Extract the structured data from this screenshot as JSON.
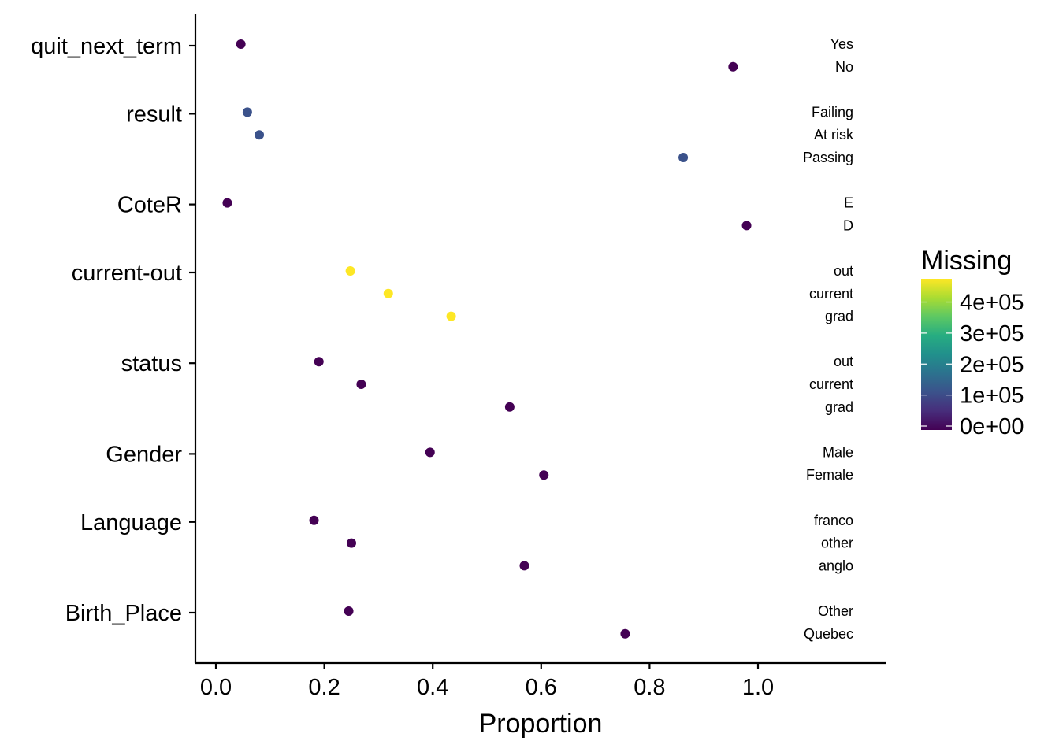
{
  "chart_data": {
    "type": "scatter",
    "xlabel": "Proportion",
    "ylabel": "",
    "xlim": [
      -0.04,
      1.27
    ],
    "x_ticks": [
      "0.0",
      "0.2",
      "0.4",
      "0.6",
      "0.8",
      "1.0"
    ],
    "x_tick_values": [
      0.0,
      0.2,
      0.4,
      0.6,
      0.8,
      1.0
    ],
    "grid": false,
    "legend": {
      "title": "Missing",
      "placement": "right",
      "labels": [
        "4e+05",
        "3e+05",
        "2e+05",
        "1e+05",
        "0e+00"
      ],
      "values": [
        400000,
        300000,
        200000,
        100000,
        0
      ],
      "max_value": 475000,
      "colormap": "viridis",
      "colors": [
        "#440154",
        "#472D7B",
        "#3B528B",
        "#2C728E",
        "#21908C",
        "#27AD81",
        "#5DC863",
        "#AADC32",
        "#FDE725"
      ]
    },
    "variables": [
      {
        "name": "quit_next_term",
        "missing": 3000,
        "color": "#440154",
        "levels": [
          {
            "label": "Yes",
            "x": 0.046
          },
          {
            "label": "No",
            "x": 0.954
          }
        ]
      },
      {
        "name": "result",
        "missing": 120000,
        "color": "#3B528B",
        "levels": [
          {
            "label": "Failing",
            "x": 0.058
          },
          {
            "label": "At risk",
            "x": 0.08
          },
          {
            "label": "Passing",
            "x": 0.862
          }
        ]
      },
      {
        "name": "CoteR",
        "missing": 3000,
        "color": "#440154",
        "levels": [
          {
            "label": "E",
            "x": 0.021
          },
          {
            "label": "D",
            "x": 0.979
          }
        ]
      },
      {
        "name": "current-out",
        "missing": 475000,
        "color": "#FDE725",
        "levels": [
          {
            "label": "out",
            "x": 0.248
          },
          {
            "label": "current",
            "x": 0.318
          },
          {
            "label": "grad",
            "x": 0.434
          }
        ]
      },
      {
        "name": "status",
        "missing": 3000,
        "color": "#440154",
        "levels": [
          {
            "label": "out",
            "x": 0.19
          },
          {
            "label": "current",
            "x": 0.268
          },
          {
            "label": "grad",
            "x": 0.542
          }
        ]
      },
      {
        "name": "Gender",
        "missing": 3000,
        "color": "#440154",
        "levels": [
          {
            "label": "Male",
            "x": 0.395
          },
          {
            "label": "Female",
            "x": 0.605
          }
        ]
      },
      {
        "name": "Language",
        "missing": 3000,
        "color": "#440154",
        "levels": [
          {
            "label": "franco",
            "x": 0.181
          },
          {
            "label": "other",
            "x": 0.25
          },
          {
            "label": "anglo",
            "x": 0.569
          }
        ]
      },
      {
        "name": "Birth_Place",
        "missing": 3000,
        "color": "#440154",
        "levels": [
          {
            "label": "Other",
            "x": 0.245
          },
          {
            "label": "Quebec",
            "x": 0.755
          }
        ]
      }
    ]
  }
}
